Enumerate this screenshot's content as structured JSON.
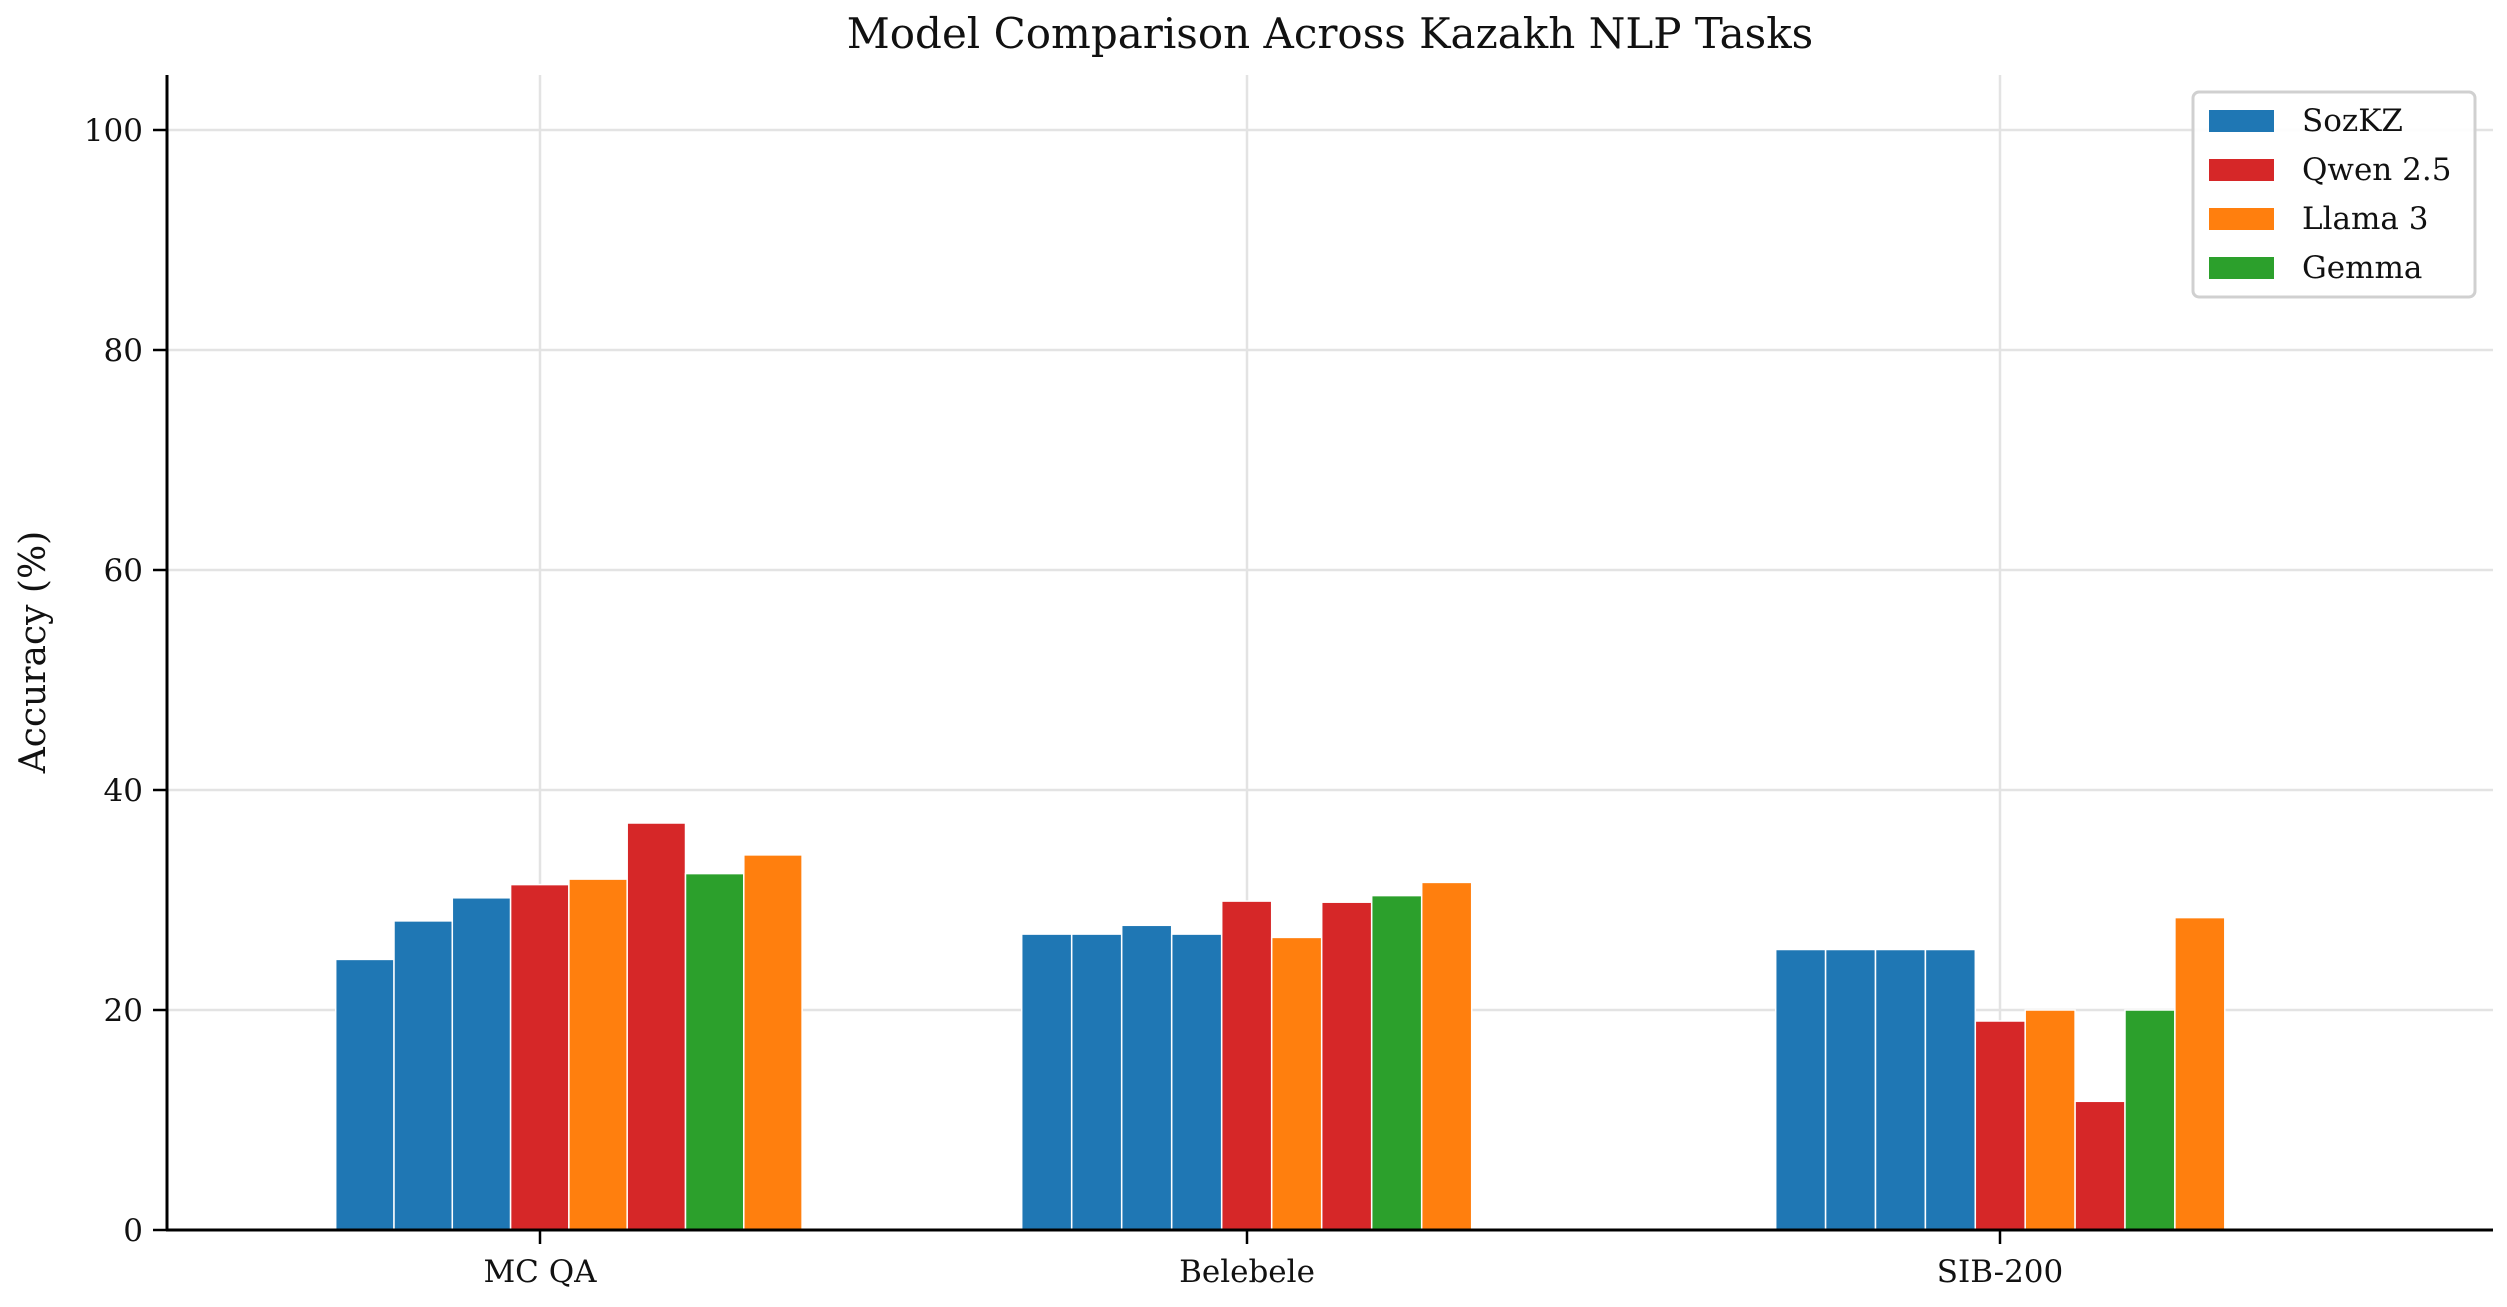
{
  "chart_data": {
    "type": "bar",
    "title": "Model Comparison Across Kazakh NLP Tasks",
    "xlabel": "",
    "ylabel": "Accuracy (%)",
    "ylim": [
      0,
      105
    ],
    "yticks": [
      "0",
      "20",
      "40",
      "60",
      "80",
      "100"
    ],
    "grid": true,
    "legend_position": "top-right",
    "legend": [
      {
        "name": "SozKZ",
        "color": "#1f77b4"
      },
      {
        "name": "Qwen 2.5",
        "color": "#d62728"
      },
      {
        "name": "Llama 3",
        "color": "#ff7f0e"
      },
      {
        "name": "Gemma",
        "color": "#2ca02c"
      }
    ],
    "categories": [
      "MC QA",
      "Belebele",
      "SIB-200"
    ],
    "groups": [
      {
        "category": "MC QA",
        "bars": [
          {
            "value": 24.6,
            "color": "#1f77b4"
          },
          {
            "value": 28.1,
            "color": "#1f77b4"
          },
          {
            "value": 30.2,
            "color": "#1f77b4"
          },
          {
            "value": 31.4,
            "color": "#d62728"
          },
          {
            "value": 31.9,
            "color": "#ff7f0e"
          },
          {
            "value": 37.0,
            "color": "#d62728"
          },
          {
            "value": 32.4,
            "color": "#2ca02c"
          },
          {
            "value": 34.1,
            "color": "#ff7f0e"
          }
        ]
      },
      {
        "category": "Belebele",
        "bars": [
          {
            "value": 26.9,
            "color": "#1f77b4"
          },
          {
            "value": 26.9,
            "color": "#1f77b4"
          },
          {
            "value": 27.7,
            "color": "#1f77b4"
          },
          {
            "value": 26.9,
            "color": "#1f77b4"
          },
          {
            "value": 29.9,
            "color": "#d62728"
          },
          {
            "value": 26.6,
            "color": "#ff7f0e"
          },
          {
            "value": 29.8,
            "color": "#d62728"
          },
          {
            "value": 30.4,
            "color": "#2ca02c"
          },
          {
            "value": 31.6,
            "color": "#ff7f0e"
          }
        ]
      },
      {
        "category": "SIB-200",
        "bars": [
          {
            "value": 25.5,
            "color": "#1f77b4"
          },
          {
            "value": 25.5,
            "color": "#1f77b4"
          },
          {
            "value": 25.5,
            "color": "#1f77b4"
          },
          {
            "value": 25.5,
            "color": "#1f77b4"
          },
          {
            "value": 19.0,
            "color": "#d62728"
          },
          {
            "value": 20.0,
            "color": "#ff7f0e"
          },
          {
            "value": 11.7,
            "color": "#d62728"
          },
          {
            "value": 20.0,
            "color": "#2ca02c"
          },
          {
            "value": 28.4,
            "color": "#ff7f0e"
          }
        ]
      }
    ]
  }
}
